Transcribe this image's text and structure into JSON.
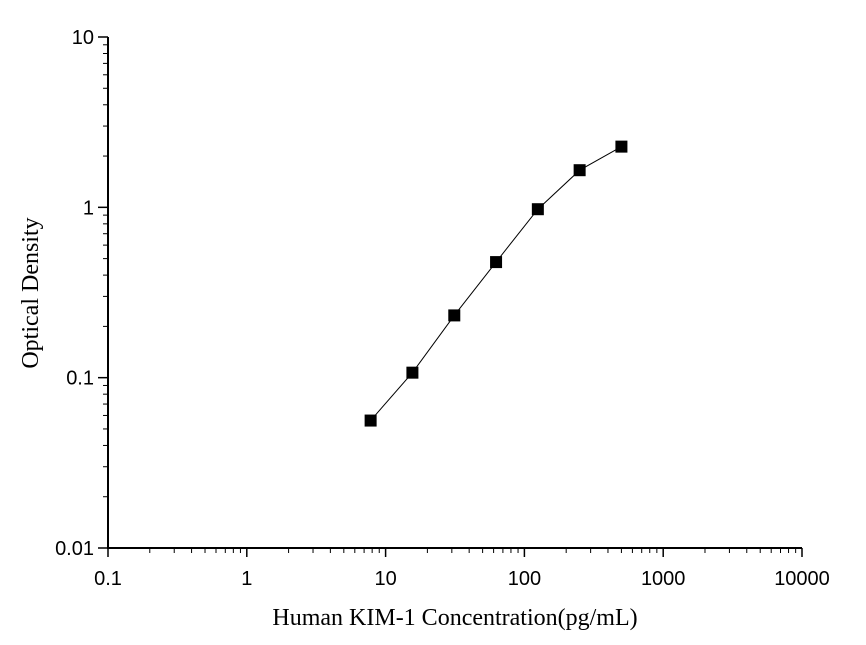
{
  "chart_data": {
    "type": "scatter",
    "title": "",
    "xlabel": "Human KIM-1 Concentration(pg/mL)",
    "ylabel": "Optical Density",
    "x_scale": "log",
    "y_scale": "log",
    "xlim": [
      0.1,
      10000
    ],
    "ylim": [
      0.01,
      10
    ],
    "x_ticks": [
      0.1,
      1,
      10,
      100,
      1000,
      10000
    ],
    "x_tick_labels": [
      "0.1",
      "1",
      "10",
      "100",
      "1000",
      "10000"
    ],
    "y_ticks": [
      0.01,
      0.1,
      1,
      10
    ],
    "y_tick_labels": [
      "0.01",
      "0.1",
      "1",
      "10"
    ],
    "grid": false,
    "legend": "none",
    "series": [
      {
        "x": [
          7.8,
          15.6,
          31.25,
          62.5,
          125,
          250,
          500
        ],
        "y": [
          0.056,
          0.107,
          0.232,
          0.477,
          0.975,
          1.652,
          2.272
        ],
        "marker": "square",
        "line": "straight",
        "color": "#000000"
      }
    ]
  }
}
